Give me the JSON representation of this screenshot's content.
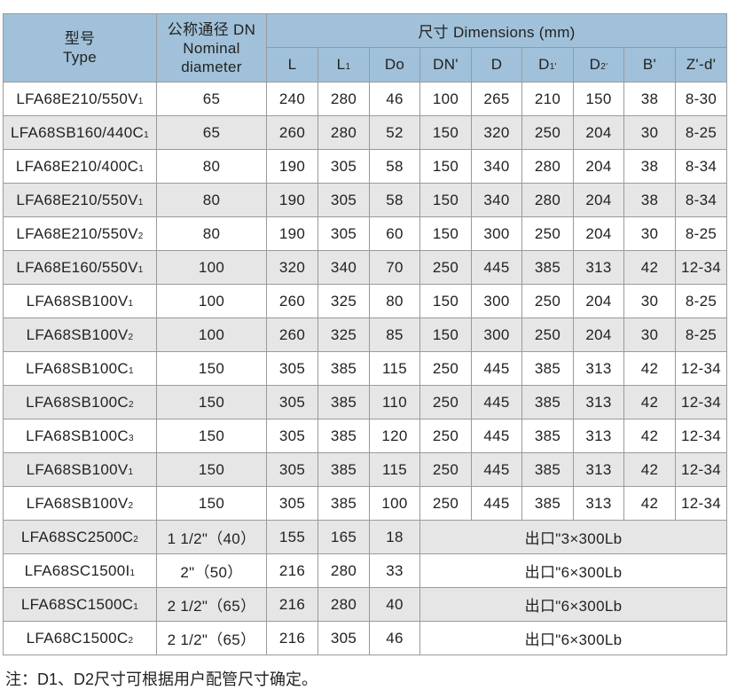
{
  "header": {
    "type_cn": "型号",
    "type_en": "Type",
    "dn_cn": "公称通径 DN",
    "dn_en1": "Nominal",
    "dn_en2": "diameter",
    "dims": "尺寸  Dimensions (mm)",
    "cols": [
      [
        "L",
        ""
      ],
      [
        "L",
        "1"
      ],
      [
        "Do",
        ""
      ],
      [
        "DN'",
        ""
      ],
      [
        "D",
        ""
      ],
      [
        "D",
        "1'"
      ],
      [
        "D",
        "2'"
      ],
      [
        "B'",
        ""
      ],
      [
        "Z'-d'",
        ""
      ]
    ]
  },
  "rows": [
    {
      "model": "LFA68E210/550V",
      "sub": "1",
      "dn": "65",
      "vals": [
        "240",
        "280",
        "46",
        "100",
        "265",
        "210",
        "150",
        "38",
        "8-30"
      ]
    },
    {
      "model": "LFA68SB160/440C",
      "sub": "1",
      "dn": "65",
      "vals": [
        "260",
        "280",
        "52",
        "150",
        "320",
        "250",
        "204",
        "30",
        "8-25"
      ]
    },
    {
      "model": "LFA68E210/400C",
      "sub": "1",
      "dn": "80",
      "vals": [
        "190",
        "305",
        "58",
        "150",
        "340",
        "280",
        "204",
        "38",
        "8-34"
      ]
    },
    {
      "model": "LFA68E210/550V",
      "sub": "1",
      "dn": "80",
      "vals": [
        "190",
        "305",
        "58",
        "150",
        "340",
        "280",
        "204",
        "38",
        "8-34"
      ]
    },
    {
      "model": "LFA68E210/550V",
      "sub": "2",
      "dn": "80",
      "vals": [
        "190",
        "305",
        "60",
        "150",
        "300",
        "250",
        "204",
        "30",
        "8-25"
      ]
    },
    {
      "model": "LFA68E160/550V",
      "sub": "1",
      "dn": "100",
      "vals": [
        "320",
        "340",
        "70",
        "250",
        "445",
        "385",
        "313",
        "42",
        "12-34"
      ]
    },
    {
      "model": "LFA68SB100V",
      "sub": "1",
      "dn": "100",
      "vals": [
        "260",
        "325",
        "80",
        "150",
        "300",
        "250",
        "204",
        "30",
        "8-25"
      ]
    },
    {
      "model": "LFA68SB100V",
      "sub": "2",
      "dn": "100",
      "vals": [
        "260",
        "325",
        "85",
        "150",
        "300",
        "250",
        "204",
        "30",
        "8-25"
      ]
    },
    {
      "model": "LFA68SB100C",
      "sub": "1",
      "dn": "150",
      "vals": [
        "305",
        "385",
        "115",
        "250",
        "445",
        "385",
        "313",
        "42",
        "12-34"
      ]
    },
    {
      "model": "LFA68SB100C",
      "sub": "2",
      "dn": "150",
      "vals": [
        "305",
        "385",
        "110",
        "250",
        "445",
        "385",
        "313",
        "42",
        "12-34"
      ]
    },
    {
      "model": "LFA68SB100C",
      "sub": "3",
      "dn": "150",
      "vals": [
        "305",
        "385",
        "120",
        "250",
        "445",
        "385",
        "313",
        "42",
        "12-34"
      ]
    },
    {
      "model": "LFA68SB100V",
      "sub": "1",
      "dn": "150",
      "vals": [
        "305",
        "385",
        "115",
        "250",
        "445",
        "385",
        "313",
        "42",
        "12-34"
      ]
    },
    {
      "model": "LFA68SB100V",
      "sub": "2",
      "dn": "150",
      "vals": [
        "305",
        "385",
        "100",
        "250",
        "445",
        "385",
        "313",
        "42",
        "12-34"
      ]
    },
    {
      "model": "LFA68SC2500C",
      "sub": "2",
      "dn": "1 1/2\"（40）",
      "vals": [
        "155",
        "165",
        "18"
      ],
      "outlet": "出口\"3×300Lb"
    },
    {
      "model": "LFA68SC1500I",
      "sub": "1",
      "dn": "2\"（50）",
      "vals": [
        "216",
        "280",
        "33"
      ],
      "outlet": "出口\"6×300Lb"
    },
    {
      "model": "LFA68SC1500C",
      "sub": "1",
      "dn": "2 1/2\"（65）",
      "vals": [
        "216",
        "280",
        "40"
      ],
      "outlet": "出口\"6×300Lb"
    },
    {
      "model": "LFA68C1500C",
      "sub": "2",
      "dn": "2 1/2\"（65）",
      "vals": [
        "216",
        "305",
        "46"
      ],
      "outlet": "出口\"6×300Lb"
    }
  ],
  "note": "注：D1、D2尺寸可根据用户配管尺寸确定。",
  "colors": {
    "header_bg": "#a0c1d9",
    "stripe": "#e6e6e6",
    "border": "#9a9a9a"
  }
}
